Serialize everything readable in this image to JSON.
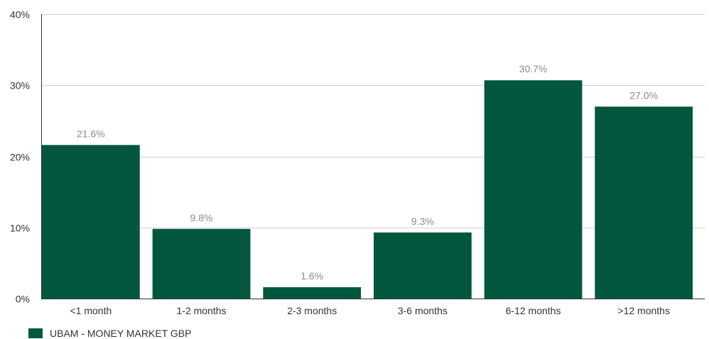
{
  "chart_data": {
    "type": "bar",
    "categories": [
      "<1 month",
      "1-2 months",
      "2-3 months",
      "3-6 months",
      "6-12 months",
      ">12 months"
    ],
    "series": [
      {
        "name": "UBAM - MONEY MARKET GBP",
        "values": [
          21.6,
          9.8,
          1.6,
          9.3,
          30.7,
          27.0
        ],
        "labels": [
          "21.6%",
          "9.8%",
          "1.6%",
          "9.3%",
          "30.7%",
          "27.0%"
        ],
        "color": "#03573f"
      }
    ],
    "ylim": [
      0,
      40
    ],
    "yticks": [
      0,
      10,
      20,
      30,
      40
    ],
    "ytick_labels": [
      "0%",
      "10%",
      "20%",
      "30%",
      "40%"
    ],
    "grid": true,
    "legend_position": "bottom-left"
  }
}
